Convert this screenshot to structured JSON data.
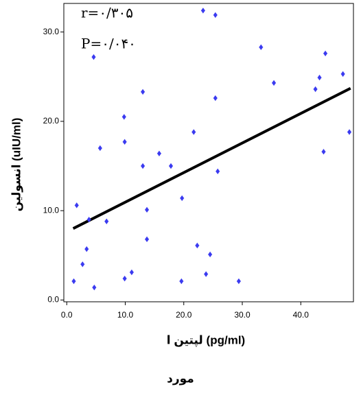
{
  "chart_data": {
    "type": "scatter",
    "x_label": "لپتین ا (pg/ml)",
    "y_label": "انسولین (uIU/ml)",
    "caption": "مورد",
    "annotations": [
      "r=۰/۳۰۵",
      "P=۰/۰۴۰"
    ],
    "xlim": [
      -0.5,
      49
    ],
    "ylim": [
      -0.2,
      33.2
    ],
    "xticks": [
      {
        "value": 0,
        "label": "0.0"
      },
      {
        "value": 10,
        "label": "10.0"
      },
      {
        "value": 20,
        "label": "20.0"
      },
      {
        "value": 30,
        "label": "30.0"
      },
      {
        "value": 40,
        "label": "40.0"
      }
    ],
    "yticks": [
      {
        "value": 0,
        "label": "0.0"
      },
      {
        "value": 10,
        "label": "10.0"
      },
      {
        "value": 20,
        "label": "20.0"
      },
      {
        "value": 30,
        "label": "30.0"
      }
    ],
    "color": "#3b3bf0",
    "x": [
      1.2,
      1.7,
      2.7,
      3.4,
      3.8,
      4.6,
      4.7,
      5.7,
      6.8,
      9.8,
      9.9,
      9.9,
      11.1,
      13.0,
      13.0,
      13.7,
      13.7,
      15.8,
      17.8,
      19.7,
      19.6,
      21.7,
      22.3,
      23.3,
      23.8,
      24.5,
      25.4,
      25.4,
      25.8,
      29.4,
      33.2,
      35.4,
      42.5,
      43.2,
      43.9,
      44.2,
      47.2,
      48.3
    ],
    "values": [
      2.1,
      10.6,
      4.0,
      5.7,
      9.0,
      27.2,
      1.4,
      17.0,
      8.8,
      20.5,
      17.7,
      2.4,
      3.1,
      23.3,
      15.0,
      10.1,
      6.8,
      16.4,
      15.0,
      11.4,
      2.1,
      18.8,
      6.1,
      32.4,
      2.9,
      5.1,
      31.9,
      22.6,
      14.4,
      2.1,
      28.3,
      24.3,
      23.6,
      24.9,
      16.6,
      27.6,
      25.3,
      18.8
    ],
    "trend_line": {
      "x": [
        1.1,
        48.5
      ],
      "values": [
        8.0,
        23.7
      ],
      "color": "#000000"
    }
  }
}
